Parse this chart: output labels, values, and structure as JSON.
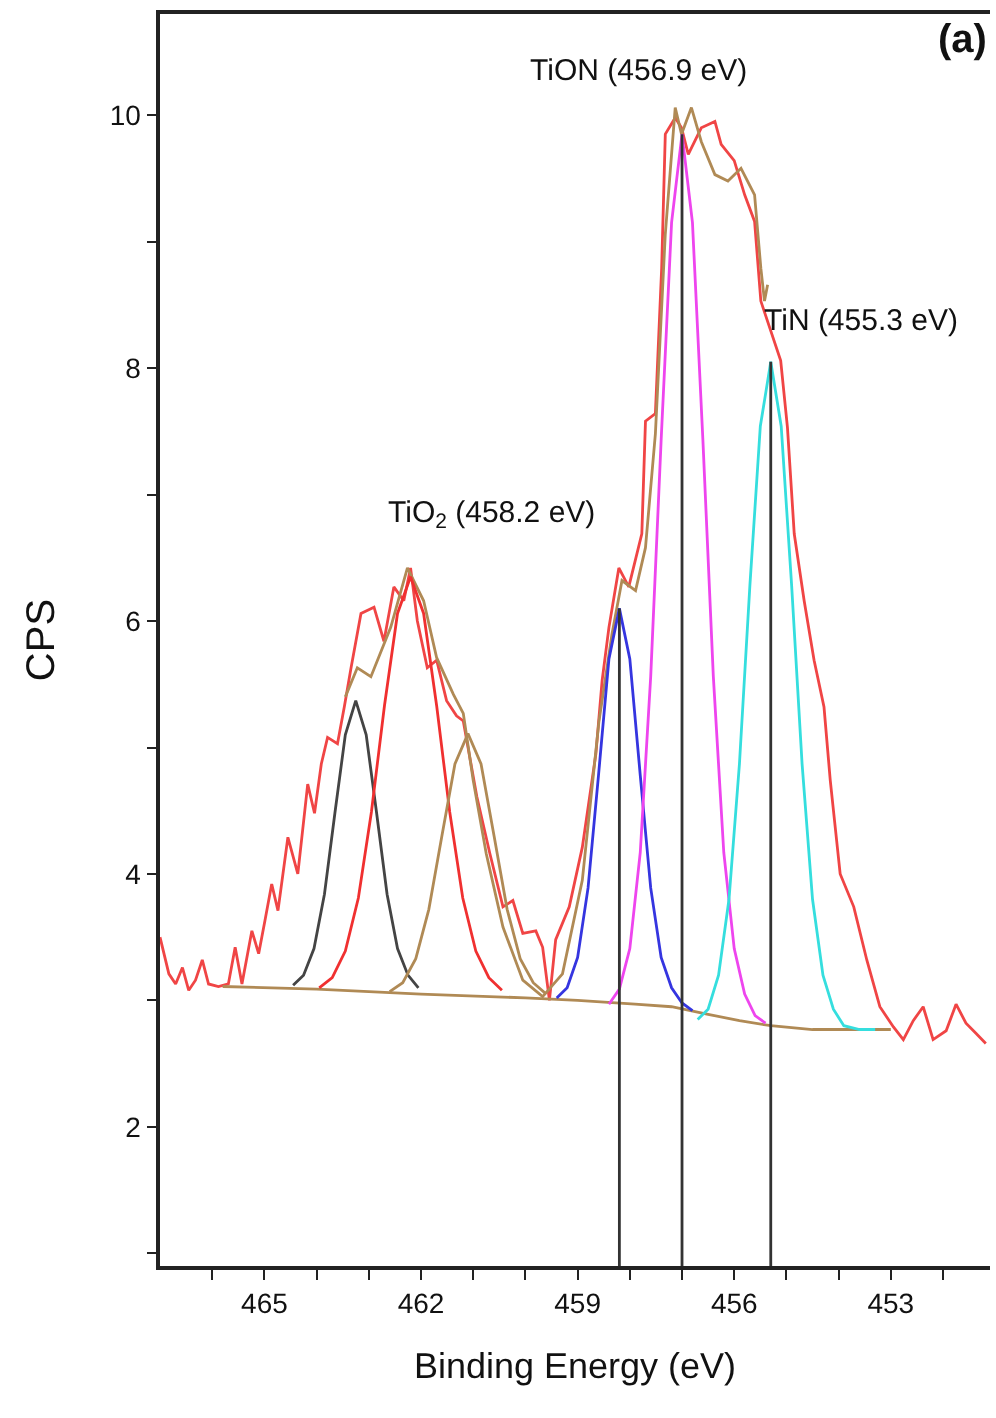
{
  "chart_data": {
    "type": "line",
    "xlabel": "Binding Energy (eV)",
    "ylabel": "CPS",
    "xlim": [
      467.0,
      451.1
    ],
    "ylim": [
      0.9,
      10.8
    ],
    "xticks": [
      {
        "value": 466,
        "label": null
      },
      465,
      {
        "value": 464,
        "label": null
      },
      {
        "value": 463,
        "label": null
      },
      462,
      {
        "value": 461,
        "label": null
      },
      {
        "value": 460,
        "label": null
      },
      459,
      {
        "value": 458,
        "label": null
      },
      {
        "value": 457,
        "label": null
      },
      456,
      {
        "value": 455,
        "label": null
      },
      {
        "value": 454,
        "label": null
      },
      453,
      {
        "value": 452,
        "label": null
      }
    ],
    "yticks": [
      {
        "value": 1,
        "label": null
      },
      2,
      {
        "value": 3,
        "label": null
      },
      4,
      {
        "value": 5,
        "label": null
      },
      6,
      {
        "value": 7,
        "label": null
      },
      8,
      {
        "value": 9,
        "label": null
      },
      10
    ],
    "annotations": [
      "TiON (456.9 eV)",
      "TiN (455.3 eV)",
      "TiO$_{2}$ (458.2 eV)",
      "(a)"
    ],
    "series": [
      {
        "color": "#f04545",
        "x": [
          467.0,
          466.83,
          466.7,
          466.57,
          466.45,
          466.32,
          466.19,
          466.07,
          465.88,
          465.69,
          465.56,
          465.43,
          465.24,
          465.11,
          464.99,
          464.86,
          464.74,
          464.55,
          464.36,
          464.17,
          464.04,
          463.91,
          463.79,
          463.6,
          463.47,
          463.34,
          463.15,
          462.9,
          462.71,
          462.52,
          462.33,
          462.2,
          462.07,
          461.88,
          461.7,
          461.51,
          461.32,
          461.19,
          460.93,
          460.68,
          460.43,
          460.24,
          460.05,
          459.8,
          459.67,
          459.54,
          459.42,
          459.16,
          458.91,
          458.65,
          458.53,
          458.4,
          458.21,
          458.02,
          457.77,
          457.7,
          457.51,
          457.39,
          457.32,
          457.13,
          457.01,
          456.88,
          456.63,
          456.37,
          456.25,
          456.0,
          455.8,
          455.61,
          455.49,
          455.11,
          454.98,
          454.85,
          454.66,
          454.47,
          454.28,
          454.16,
          453.97,
          453.71,
          453.46,
          453.21,
          452.95,
          452.76,
          452.57,
          452.38,
          452.19,
          451.94,
          451.75,
          451.56,
          451.37,
          451.18
        ],
        "values": [
          3.5,
          3.21,
          3.13,
          3.26,
          3.08,
          3.16,
          3.32,
          3.13,
          3.11,
          3.13,
          3.42,
          3.13,
          3.55,
          3.37,
          3.63,
          3.92,
          3.71,
          4.29,
          4.0,
          4.71,
          4.48,
          4.87,
          5.08,
          5.03,
          5.32,
          5.63,
          6.06,
          6.11,
          5.84,
          6.27,
          6.16,
          6.42,
          6.0,
          5.63,
          5.69,
          5.37,
          5.25,
          5.21,
          4.61,
          4.16,
          3.74,
          3.79,
          3.53,
          3.55,
          3.42,
          3.0,
          3.48,
          3.74,
          4.21,
          4.95,
          5.53,
          5.95,
          6.42,
          6.27,
          6.69,
          7.58,
          7.64,
          8.79,
          9.85,
          9.98,
          9.9,
          9.69,
          9.9,
          9.95,
          9.77,
          9.64,
          9.37,
          9.16,
          8.53,
          8.06,
          7.53,
          6.69,
          6.16,
          5.69,
          5.32,
          4.74,
          4.0,
          3.74,
          3.32,
          2.95,
          2.79,
          2.69,
          2.84,
          2.95,
          2.69,
          2.76,
          2.97,
          2.82,
          2.74,
          2.66
        ]
      },
      {
        "color": "#b08a55",
        "x": [
          463.45,
          463.22,
          462.96,
          462.58,
          462.26,
          461.95,
          461.7,
          461.38,
          461.19,
          461.0,
          460.75,
          460.43,
          460.05,
          459.67,
          459.29,
          458.91,
          458.59,
          458.34,
          458.15,
          457.89,
          457.7,
          457.51,
          457.32,
          457.13,
          457.01,
          456.82,
          456.63,
          456.37,
          456.12,
          455.87,
          455.61,
          455.49,
          455.42,
          455.36
        ],
        "values": [
          5.4,
          5.63,
          5.56,
          5.95,
          6.42,
          6.16,
          5.71,
          5.42,
          5.27,
          4.74,
          4.16,
          3.58,
          3.16,
          3.03,
          3.21,
          3.95,
          5.21,
          5.9,
          6.32,
          6.24,
          6.58,
          7.48,
          9.06,
          10.06,
          9.85,
          10.06,
          9.79,
          9.53,
          9.48,
          9.58,
          9.37,
          8.79,
          8.53,
          8.66
        ]
      },
      {
        "color": "#b08a55",
        "x": [
          465.8,
          464.0,
          462.0,
          460.0,
          459.0,
          457.9,
          457.2,
          456.5,
          455.9,
          455.3,
          454.5,
          453.0
        ],
        "values": [
          3.11,
          3.09,
          3.05,
          3.02,
          3.0,
          2.97,
          2.95,
          2.89,
          2.84,
          2.8,
          2.77,
          2.77
        ]
      },
      {
        "color": "#444444",
        "x": [
          464.45,
          464.25,
          464.05,
          463.85,
          463.65,
          463.45,
          463.25,
          463.05,
          462.85,
          462.65,
          462.45,
          462.25,
          462.05
        ],
        "values": [
          3.12,
          3.2,
          3.41,
          3.84,
          4.48,
          5.1,
          5.37,
          5.1,
          4.48,
          3.84,
          3.41,
          3.2,
          3.1
        ]
      },
      {
        "color": "#f03030",
        "x": [
          463.95,
          463.7,
          463.45,
          463.2,
          462.95,
          462.7,
          462.45,
          462.2,
          461.95,
          461.7,
          461.45,
          461.2,
          460.95,
          460.7,
          460.45
        ],
        "values": [
          3.1,
          3.18,
          3.39,
          3.81,
          4.49,
          5.33,
          6.06,
          6.35,
          6.06,
          5.33,
          4.49,
          3.81,
          3.39,
          3.18,
          3.08
        ]
      },
      {
        "color": "#b08a55",
        "x": [
          462.6,
          462.35,
          462.1,
          461.85,
          461.6,
          461.35,
          461.1,
          460.85,
          460.6,
          460.35,
          460.1,
          459.85,
          459.6
        ],
        "values": [
          3.07,
          3.14,
          3.33,
          3.72,
          4.3,
          4.87,
          5.11,
          4.87,
          4.3,
          3.72,
          3.33,
          3.14,
          3.05
        ]
      },
      {
        "color": "#3535e0",
        "x": [
          459.4,
          459.2,
          459.0,
          458.8,
          458.6,
          458.4,
          458.2,
          458.0,
          457.8,
          457.6,
          457.4,
          457.2,
          457.0,
          456.8
        ],
        "values": [
          3.02,
          3.1,
          3.34,
          3.89,
          4.78,
          5.7,
          6.1,
          5.7,
          4.78,
          3.89,
          3.34,
          3.1,
          2.98,
          2.92
        ]
      },
      {
        "color": "#ee45ee",
        "x": [
          458.4,
          458.2,
          458.0,
          457.8,
          457.6,
          457.4,
          457.2,
          457.0,
          456.8,
          456.6,
          456.4,
          456.2,
          456.0,
          455.8,
          455.6,
          455.4
        ],
        "values": [
          2.97,
          3.09,
          3.41,
          4.17,
          5.56,
          7.43,
          9.15,
          9.85,
          9.15,
          7.43,
          5.56,
          4.17,
          3.41,
          3.05,
          2.88,
          2.82
        ]
      },
      {
        "color": "#35dede",
        "x": [
          456.7,
          456.5,
          456.3,
          456.1,
          455.9,
          455.7,
          455.5,
          455.3,
          455.1,
          454.9,
          454.7,
          454.5,
          454.3,
          454.1,
          453.9,
          453.6,
          453.3
        ],
        "values": [
          2.85,
          2.93,
          3.2,
          3.8,
          4.87,
          6.28,
          7.54,
          8.05,
          7.54,
          6.28,
          4.87,
          3.8,
          3.2,
          2.93,
          2.8,
          2.77,
          2.77
        ]
      },
      {
        "color": "#333333",
        "x": [
          458.2,
          458.2,
          458.2
        ],
        "values": [
          0.9,
          3.5,
          6.1
        ]
      },
      {
        "color": "#333333",
        "x": [
          457.0,
          457.0,
          457.0
        ],
        "values": [
          0.9,
          5.0,
          9.85
        ]
      },
      {
        "color": "#333333",
        "x": [
          455.3,
          455.3,
          455.3
        ],
        "values": [
          0.9,
          4.5,
          8.05
        ]
      }
    ]
  }
}
